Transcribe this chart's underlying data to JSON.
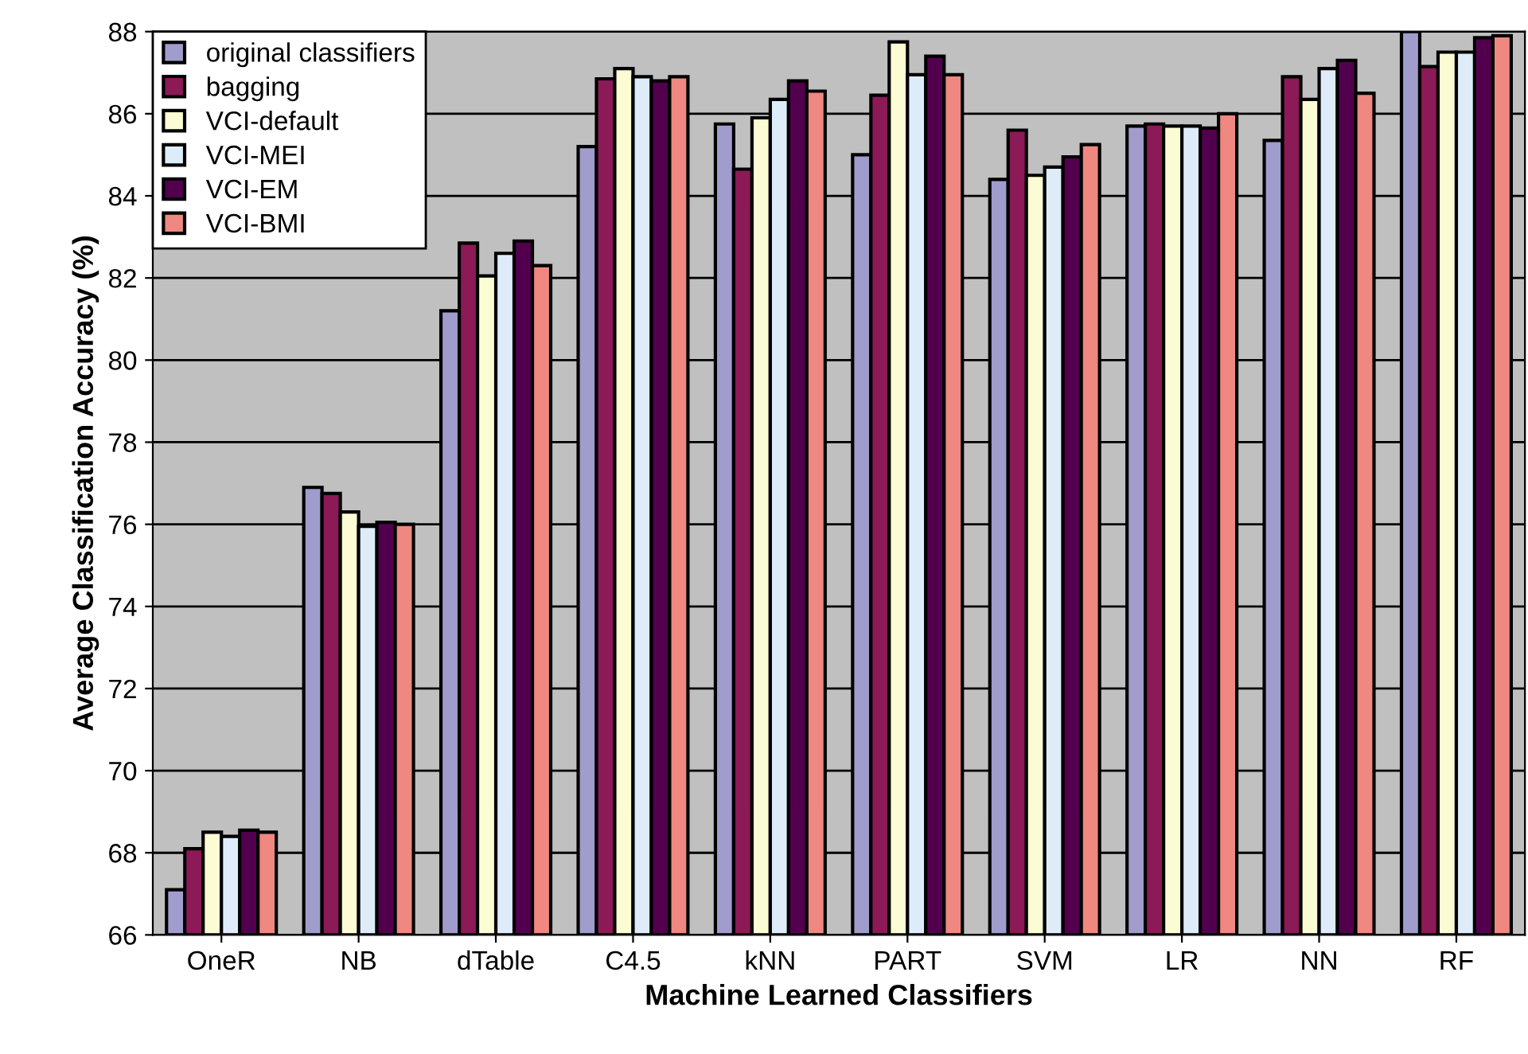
{
  "chart_data": {
    "type": "bar",
    "xlabel": "Machine Learned Classifiers",
    "ylabel": "Average Classification Accuracy (%)",
    "categories": [
      "OneR",
      "NB",
      "dTable",
      "C4.5",
      "kNN",
      "PART",
      "SVM",
      "LR",
      "NN",
      "RF"
    ],
    "series": [
      {
        "name": "original classifiers",
        "color": "#a09ccc",
        "values": [
          67.1,
          76.9,
          81.2,
          85.2,
          85.75,
          85.0,
          84.4,
          85.7,
          85.35,
          88.0
        ]
      },
      {
        "name": "bagging",
        "color": "#8b1a56",
        "values": [
          68.1,
          76.75,
          82.85,
          86.85,
          84.65,
          86.45,
          85.6,
          85.75,
          86.9,
          87.15
        ]
      },
      {
        "name": "VCI-default",
        "color": "#fcfcd4",
        "values": [
          68.5,
          76.3,
          82.05,
          87.1,
          85.9,
          87.75,
          84.5,
          85.7,
          86.35,
          87.5
        ]
      },
      {
        "name": "VCI-MEI",
        "color": "#ddecf8",
        "values": [
          68.4,
          75.95,
          82.6,
          86.9,
          86.35,
          86.95,
          84.7,
          85.7,
          87.1,
          87.5
        ]
      },
      {
        "name": "VCI-EM",
        "color": "#52004e",
        "values": [
          68.55,
          76.05,
          82.9,
          86.8,
          86.8,
          87.4,
          84.95,
          85.65,
          87.3,
          87.85
        ]
      },
      {
        "name": "VCI-BMI",
        "color": "#ee8880",
        "values": [
          68.5,
          76.0,
          82.3,
          86.9,
          86.55,
          86.95,
          85.25,
          86.0,
          86.5,
          87.9
        ]
      }
    ],
    "ylim": [
      66,
      88
    ],
    "yticks": [
      66,
      68,
      70,
      72,
      74,
      76,
      78,
      80,
      82,
      84,
      86,
      88
    ],
    "grid": "y",
    "legend": "top left"
  }
}
